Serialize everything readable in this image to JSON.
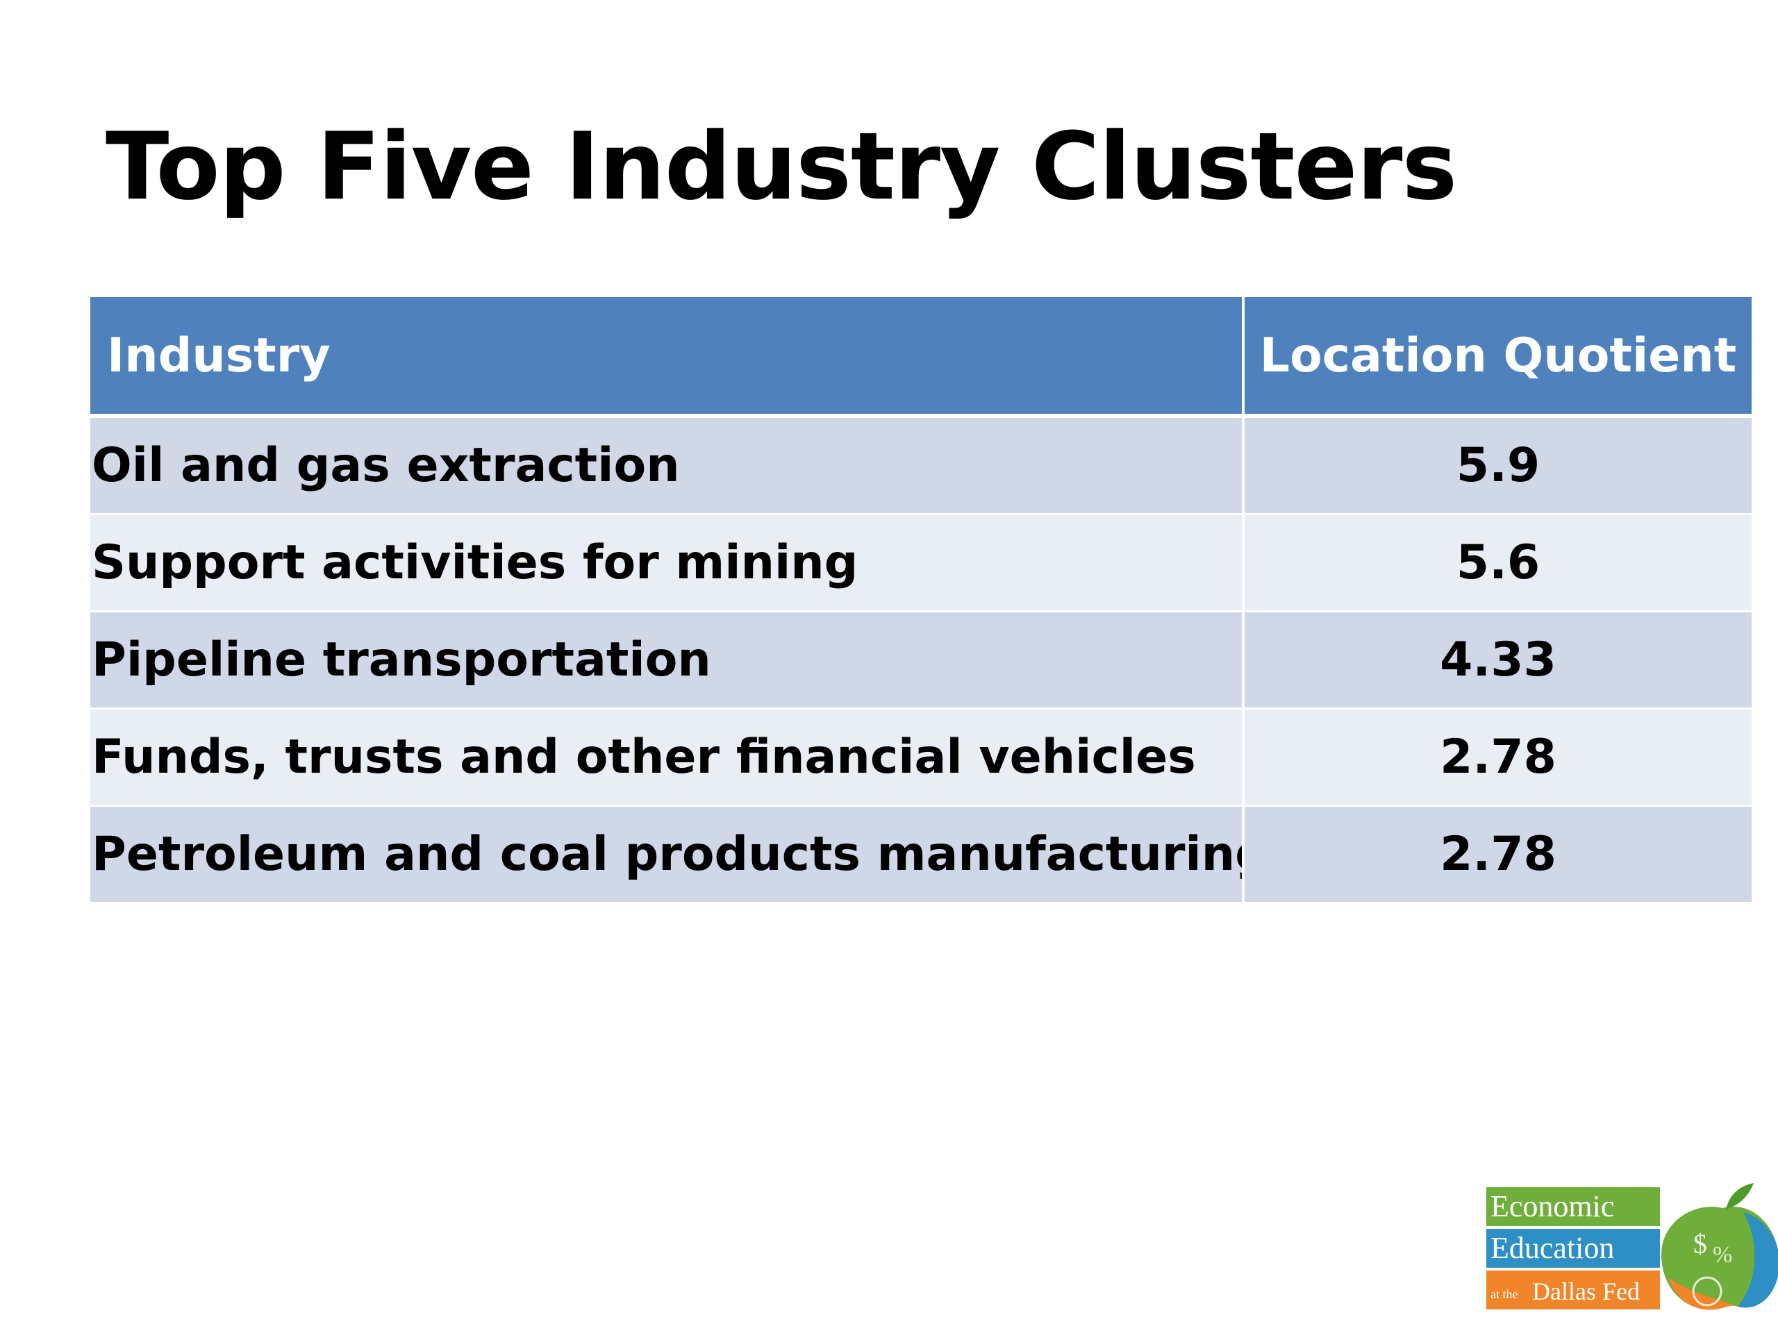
{
  "slide": {
    "title": "Top Five Industry Clusters"
  },
  "table": {
    "headers": [
      "Industry",
      "Location Quotient"
    ],
    "rows": [
      {
        "industry": "Oil and gas extraction",
        "lq": "5.9"
      },
      {
        "industry": "Support activities for mining",
        "lq": "5.6"
      },
      {
        "industry": "Pipeline transportation",
        "lq": "4.33"
      },
      {
        "industry": "Funds, trusts and other financial vehicles",
        "lq": "2.78"
      },
      {
        "industry": "Petroleum and coal products manufacturing",
        "lq": "2.78"
      }
    ]
  },
  "logo": {
    "line1": "Economic",
    "line2": "Education",
    "line3_prefix": "at the",
    "line3": "Dallas Fed"
  },
  "colors": {
    "header_bg": "#4f81bd",
    "row_odd_bg": "#d0d8e8",
    "row_even_bg": "#e9edf4",
    "logo_green": "#6fae3a",
    "logo_blue": "#2d8fc4",
    "logo_orange": "#f0852a"
  }
}
